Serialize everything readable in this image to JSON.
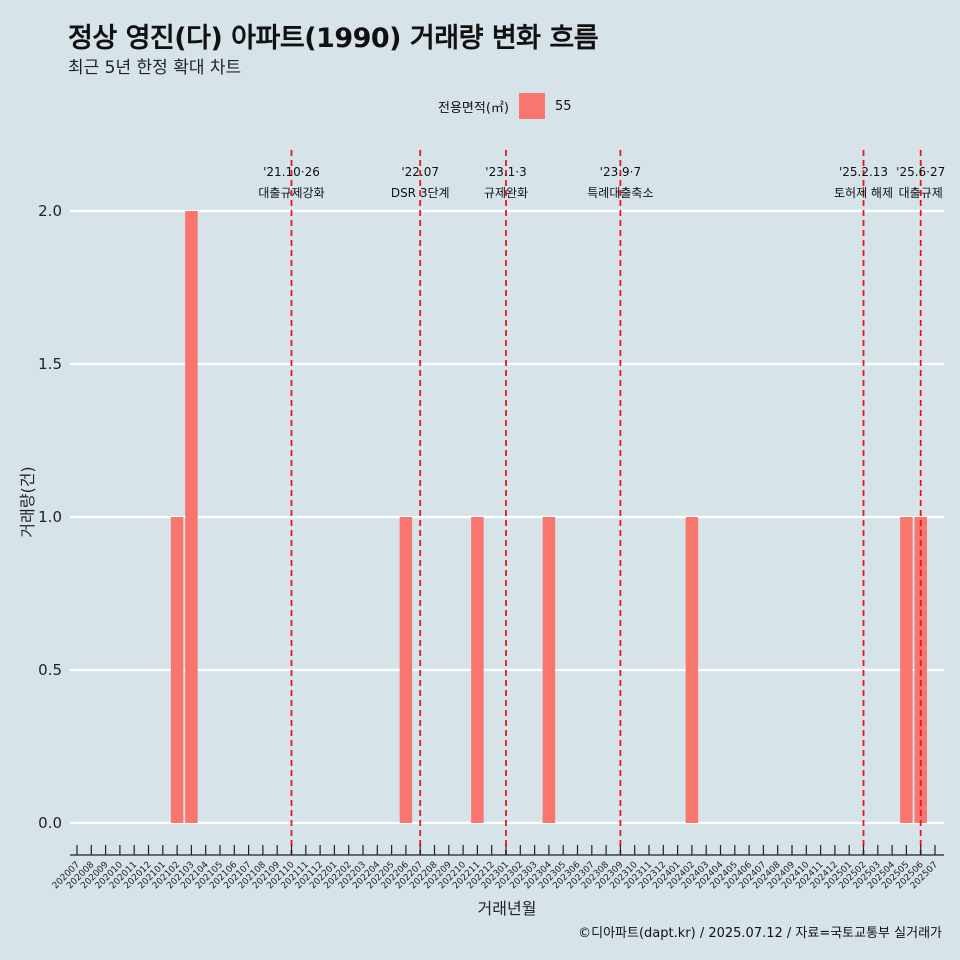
{
  "header": {
    "title": "정상 영진(다) 아파트(1990) 거래량 변화 흐름",
    "subtitle": "최근 5년 한정 확대 차트"
  },
  "legend": {
    "title": "전용면적(㎡)",
    "items": [
      {
        "label": "55",
        "color": "#f8766d"
      }
    ]
  },
  "caption": "©디아파트(dapt.kr) / 2025.07.12 / 자료=국토교통부 실거래가",
  "chart_data": {
    "type": "bar",
    "xlabel": "거래년월",
    "ylabel": "거래량(건)",
    "ylim": [
      0,
      2.0
    ],
    "yticks": [
      "0.0",
      "0.5",
      "1.0",
      "1.5",
      "2.0"
    ],
    "grid": true,
    "legend_position": "top",
    "categories": [
      "202007",
      "202008",
      "202009",
      "202010",
      "202011",
      "202012",
      "202101",
      "202102",
      "202103",
      "202104",
      "202105",
      "202106",
      "202107",
      "202108",
      "202109",
      "202110",
      "202111",
      "202112",
      "202201",
      "202202",
      "202203",
      "202204",
      "202205",
      "202206",
      "202207",
      "202208",
      "202209",
      "202210",
      "202211",
      "202212",
      "202301",
      "202302",
      "202303",
      "202304",
      "202305",
      "202306",
      "202307",
      "202308",
      "202309",
      "202310",
      "202311",
      "202312",
      "202401",
      "202402",
      "202403",
      "202404",
      "202405",
      "202406",
      "202407",
      "202408",
      "202409",
      "202410",
      "202411",
      "202412",
      "202501",
      "202502",
      "202503",
      "202504",
      "202505",
      "202506",
      "202507"
    ],
    "series": [
      {
        "name": "55",
        "color": "#f8766d",
        "values": [
          0,
          0,
          0,
          0,
          0,
          0,
          0,
          1,
          2,
          0,
          0,
          0,
          0,
          0,
          0,
          0,
          0,
          0,
          0,
          0,
          0,
          0,
          0,
          1,
          0,
          0,
          0,
          0,
          1,
          0,
          0,
          0,
          0,
          1,
          0,
          0,
          0,
          0,
          0,
          0,
          0,
          0,
          0,
          1,
          0,
          0,
          0,
          0,
          0,
          0,
          0,
          0,
          0,
          0,
          0,
          0,
          0,
          0,
          1,
          1,
          0
        ]
      }
    ],
    "events": [
      {
        "category": "202110",
        "date": "'21.10·26",
        "label": "대출규제강화"
      },
      {
        "category": "202207",
        "date": "'22.07",
        "label": "DSR 3단계"
      },
      {
        "category": "202301",
        "date": "'23.1·3",
        "label": "규제완화"
      },
      {
        "category": "202309",
        "date": "'23.9·7",
        "label": "특례대출축소"
      },
      {
        "category": "202502",
        "date": "'25.2.13",
        "label": "토허제 해제"
      },
      {
        "category": "202506",
        "date": "'25.6·27",
        "label": "대출규제"
      }
    ]
  }
}
